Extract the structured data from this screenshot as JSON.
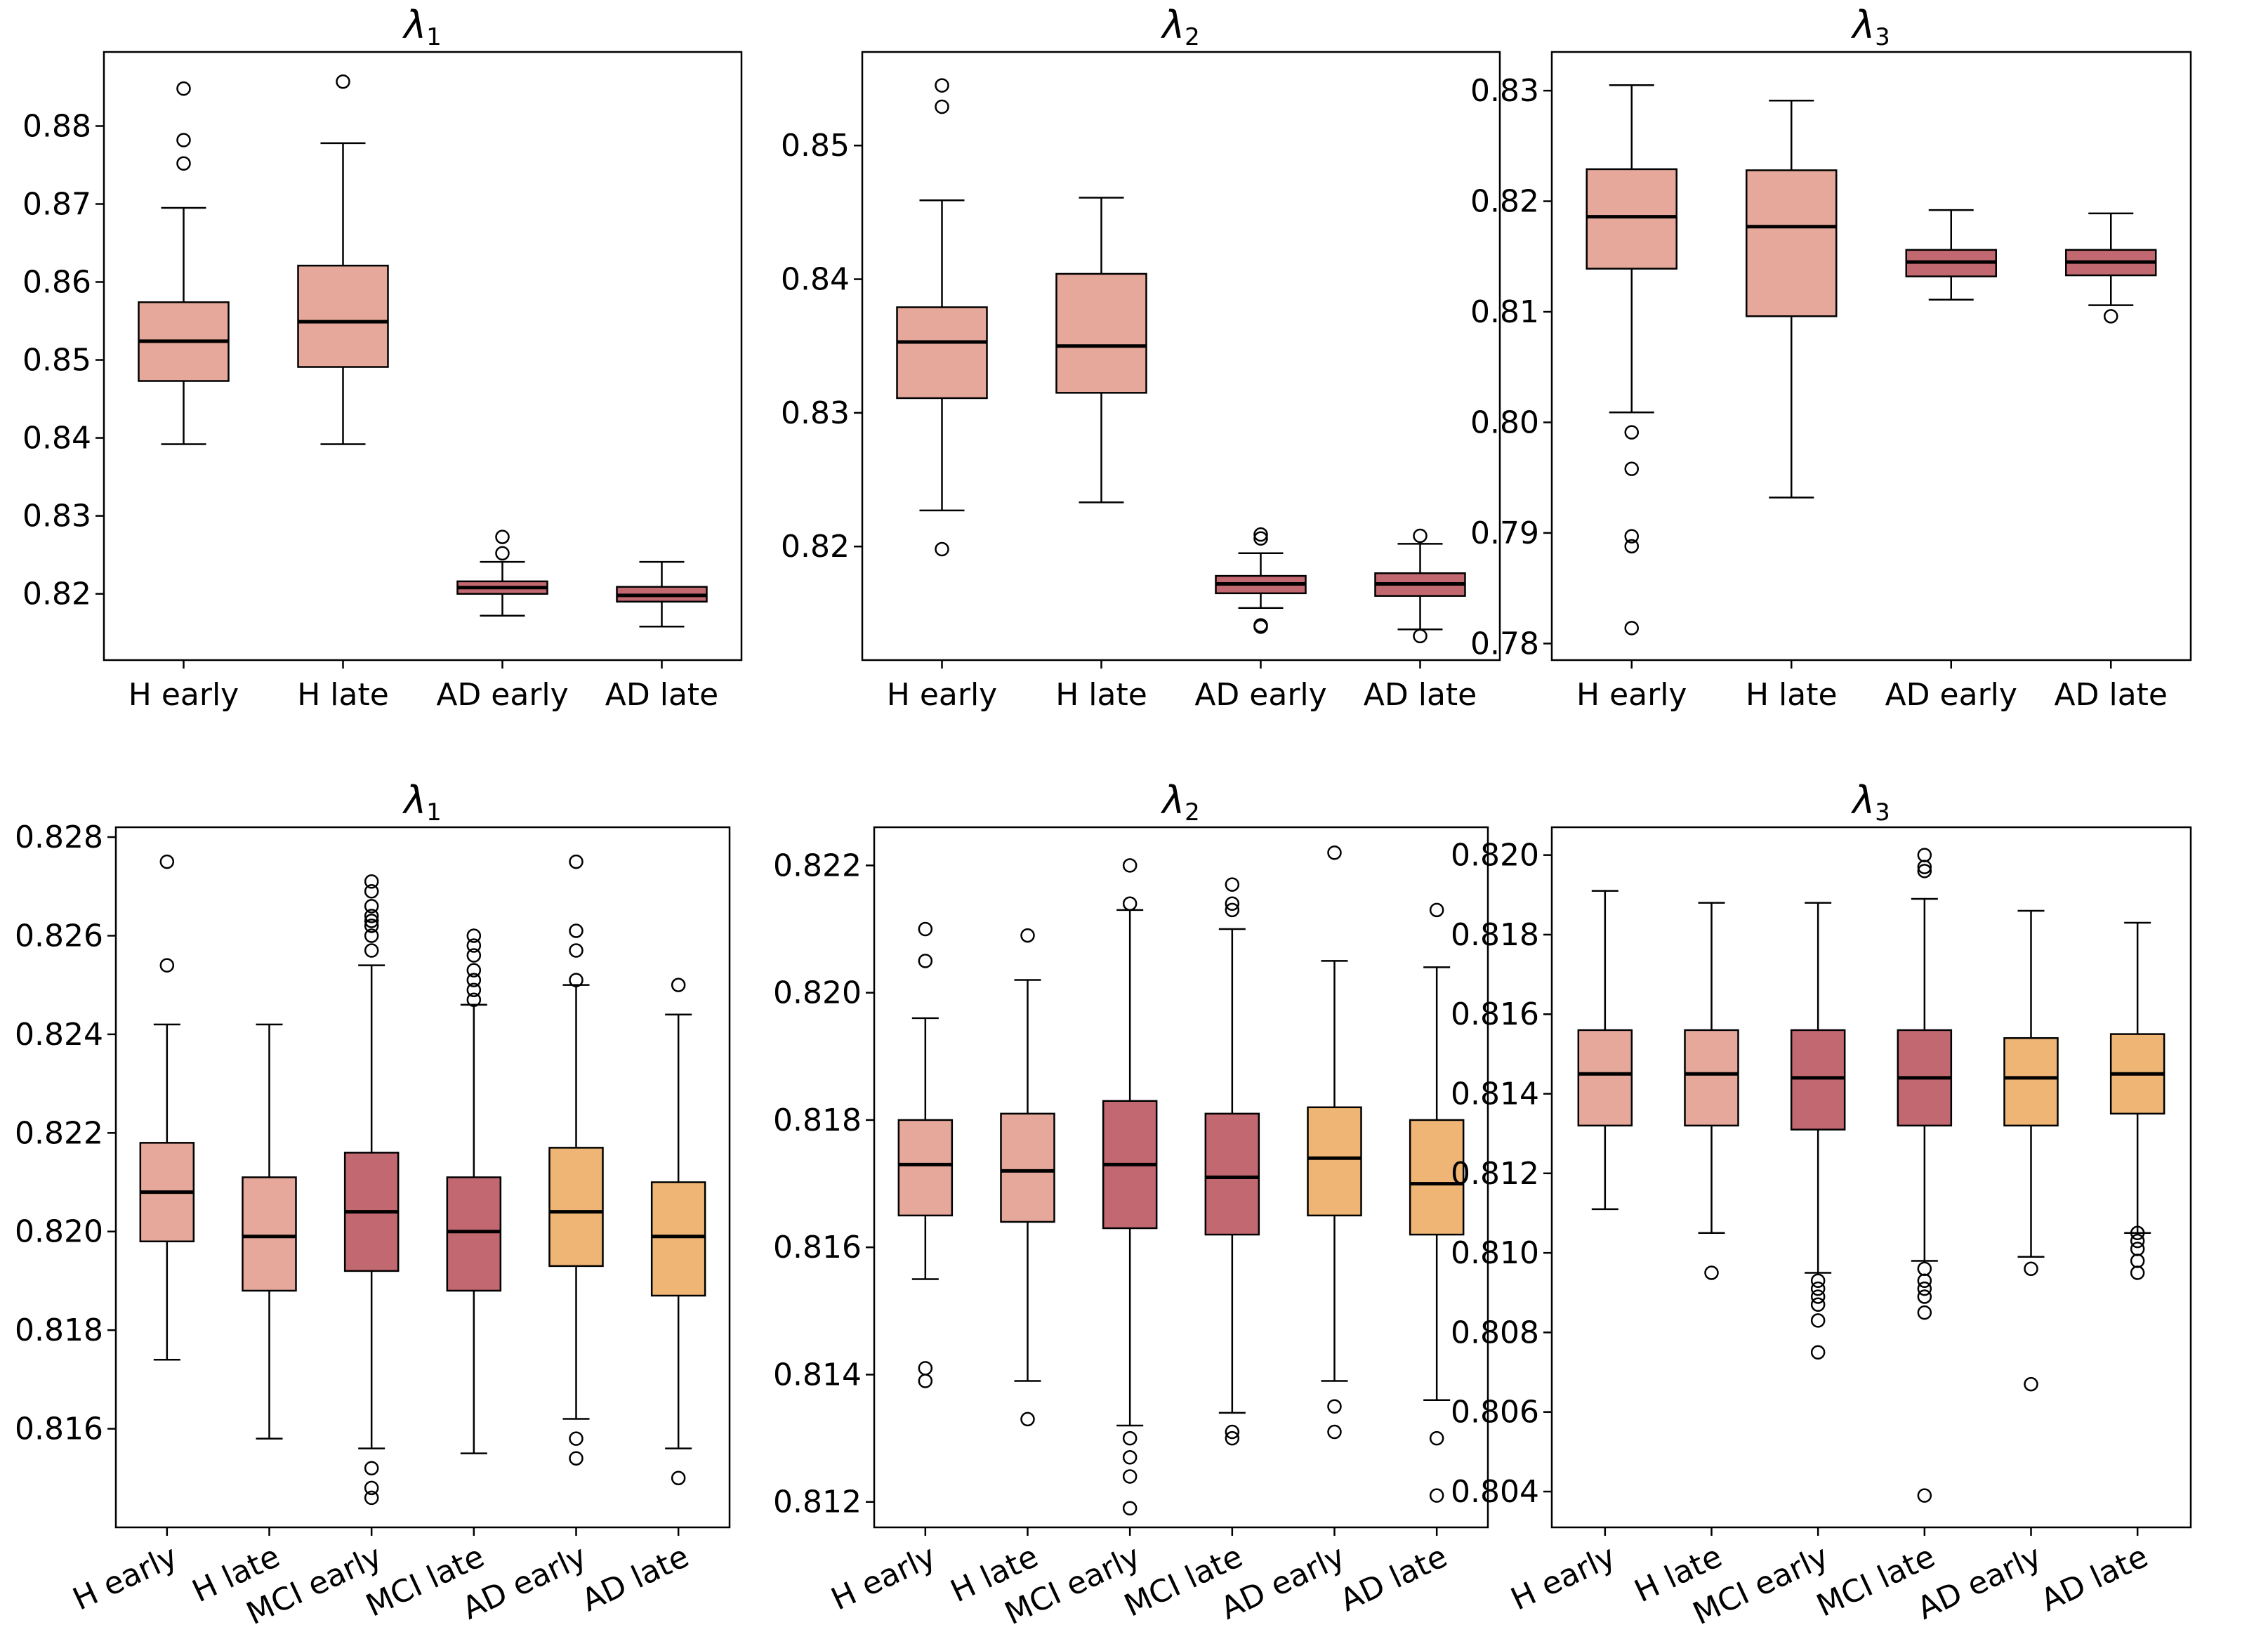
{
  "colors": {
    "H": "#E6A89A",
    "MCI": "#C26870",
    "AD_top": "#C26870",
    "AD_bottom": "#EEB574",
    "edge": "#000000"
  },
  "chart_data": [
    {
      "type": "boxplot",
      "title": "λ1",
      "title_main": "λ",
      "title_sub": "1",
      "categories": [
        "H early",
        "H late",
        "AD early",
        "AD late"
      ],
      "ylim": [
        0.8115,
        0.8895
      ],
      "yticks": [
        0.82,
        0.83,
        0.84,
        0.85,
        0.86,
        0.87,
        0.88
      ],
      "tick_labels": [
        "0.82",
        "0.83",
        "0.84",
        "0.85",
        "0.86",
        "0.87",
        "0.88"
      ],
      "groups": [
        "H",
        "H",
        "AD",
        "AD"
      ],
      "boxes": [
        {
          "whislo": 0.8392,
          "q1": 0.8473,
          "med": 0.8524,
          "q3": 0.8574,
          "whishi": 0.8695,
          "fliers": [
            0.8752,
            0.8782,
            0.8848
          ]
        },
        {
          "whislo": 0.8392,
          "q1": 0.8491,
          "med": 0.8549,
          "q3": 0.8621,
          "whishi": 0.8778,
          "fliers": [
            0.8857
          ]
        },
        {
          "whislo": 0.8172,
          "q1": 0.82,
          "med": 0.8208,
          "q3": 0.8216,
          "whishi": 0.8241,
          "fliers": [
            0.8252,
            0.8273
          ]
        },
        {
          "whislo": 0.8158,
          "q1": 0.819,
          "med": 0.8198,
          "q3": 0.8209,
          "whishi": 0.8241,
          "fliers": []
        }
      ]
    },
    {
      "type": "boxplot",
      "title": "λ2",
      "title_main": "λ",
      "title_sub": "2",
      "categories": [
        "H early",
        "H late",
        "AD early",
        "AD late"
      ],
      "ylim": [
        0.8115,
        0.857
      ],
      "yticks": [
        0.82,
        0.83,
        0.84,
        0.85
      ],
      "tick_labels": [
        "0.82",
        "0.83",
        "0.84",
        "0.85"
      ],
      "groups": [
        "H",
        "H",
        "AD",
        "AD"
      ],
      "boxes": [
        {
          "whislo": 0.8227,
          "q1": 0.8311,
          "med": 0.8353,
          "q3": 0.8379,
          "whishi": 0.8459,
          "fliers": [
            0.8198,
            0.8529,
            0.8545
          ]
        },
        {
          "whislo": 0.8233,
          "q1": 0.8315,
          "med": 0.835,
          "q3": 0.8404,
          "whishi": 0.8461,
          "fliers": []
        },
        {
          "whislo": 0.8154,
          "q1": 0.8165,
          "med": 0.8172,
          "q3": 0.8178,
          "whishi": 0.8195,
          "fliers": [
            0.814,
            0.8141,
            0.8206,
            0.8209
          ]
        },
        {
          "whislo": 0.8138,
          "q1": 0.8163,
          "med": 0.8172,
          "q3": 0.818,
          "whishi": 0.8202,
          "fliers": [
            0.8133,
            0.8208
          ]
        }
      ]
    },
    {
      "type": "boxplot",
      "title": "λ3",
      "title_main": "λ",
      "title_sub": "3",
      "categories": [
        "H early",
        "H late",
        "AD early",
        "AD late"
      ],
      "ylim": [
        0.7785,
        0.8335
      ],
      "yticks": [
        0.78,
        0.79,
        0.8,
        0.81,
        0.82,
        0.83
      ],
      "tick_labels": [
        "0.78",
        "0.79",
        "0.80",
        "0.81",
        "0.82",
        "0.83"
      ],
      "groups": [
        "H",
        "H",
        "AD",
        "AD"
      ],
      "boxes": [
        {
          "whislo": 0.8009,
          "q1": 0.8139,
          "med": 0.8186,
          "q3": 0.8229,
          "whishi": 0.8305,
          "fliers": [
            0.7991,
            0.7958,
            0.7897,
            0.7888,
            0.7814
          ]
        },
        {
          "whislo": 0.7932,
          "q1": 0.8096,
          "med": 0.8177,
          "q3": 0.8228,
          "whishi": 0.8291,
          "fliers": []
        },
        {
          "whislo": 0.8111,
          "q1": 0.8132,
          "med": 0.8145,
          "q3": 0.8156,
          "whishi": 0.8192,
          "fliers": []
        },
        {
          "whislo": 0.8106,
          "q1": 0.8133,
          "med": 0.8145,
          "q3": 0.8156,
          "whishi": 0.8189,
          "fliers": [
            0.8096
          ]
        }
      ]
    },
    {
      "type": "boxplot",
      "title": "λ1",
      "title_main": "λ",
      "title_sub": "1",
      "categories": [
        "H early",
        "H late",
        "MCI early",
        "MCI late",
        "AD early",
        "AD late"
      ],
      "ylim": [
        0.814,
        0.8282
      ],
      "yticks": [
        0.816,
        0.818,
        0.82,
        0.822,
        0.824,
        0.826,
        0.828
      ],
      "tick_labels": [
        "0.816",
        "0.818",
        "0.820",
        "0.822",
        "0.824",
        "0.826",
        "0.828"
      ],
      "groups": [
        "H",
        "H",
        "MCI",
        "MCI",
        "AD",
        "AD"
      ],
      "boxes": [
        {
          "whislo": 0.8174,
          "q1": 0.8198,
          "med": 0.8208,
          "q3": 0.8218,
          "whishi": 0.8242,
          "fliers": [
            0.8254,
            0.8275
          ]
        },
        {
          "whislo": 0.8158,
          "q1": 0.8188,
          "med": 0.8199,
          "q3": 0.8211,
          "whishi": 0.8242,
          "fliers": []
        },
        {
          "whislo": 0.8156,
          "q1": 0.8192,
          "med": 0.8204,
          "q3": 0.8216,
          "whishi": 0.8254,
          "fliers": [
            0.8152,
            0.8148,
            0.8146,
            0.8257,
            0.826,
            0.8262,
            0.8263,
            0.8264,
            0.8266,
            0.8269,
            0.8271
          ]
        },
        {
          "whislo": 0.8155,
          "q1": 0.8188,
          "med": 0.82,
          "q3": 0.8211,
          "whishi": 0.8246,
          "fliers": [
            0.8247,
            0.8249,
            0.8251,
            0.8253,
            0.8256,
            0.8258,
            0.826
          ]
        },
        {
          "whislo": 0.8162,
          "q1": 0.8193,
          "med": 0.8204,
          "q3": 0.8217,
          "whishi": 0.825,
          "fliers": [
            0.8158,
            0.8154,
            0.8251,
            0.8257,
            0.8261,
            0.8275
          ]
        },
        {
          "whislo": 0.8156,
          "q1": 0.8187,
          "med": 0.8199,
          "q3": 0.821,
          "whishi": 0.8244,
          "fliers": [
            0.815,
            0.825
          ]
        }
      ]
    },
    {
      "type": "boxplot",
      "title": "λ2",
      "title_main": "λ",
      "title_sub": "2",
      "categories": [
        "H early",
        "H late",
        "MCI early",
        "MCI late",
        "AD early",
        "AD late"
      ],
      "ylim": [
        0.8116,
        0.8226
      ],
      "yticks": [
        0.812,
        0.814,
        0.816,
        0.818,
        0.82,
        0.822
      ],
      "tick_labels": [
        "0.812",
        "0.814",
        "0.816",
        "0.818",
        "0.820",
        "0.822"
      ],
      "groups": [
        "H",
        "H",
        "MCI",
        "MCI",
        "AD",
        "AD"
      ],
      "boxes": [
        {
          "whislo": 0.8155,
          "q1": 0.8165,
          "med": 0.8173,
          "q3": 0.818,
          "whishi": 0.8196,
          "fliers": [
            0.8139,
            0.8141,
            0.8205,
            0.821
          ]
        },
        {
          "whislo": 0.8139,
          "q1": 0.8164,
          "med": 0.8172,
          "q3": 0.8181,
          "whishi": 0.8202,
          "fliers": [
            0.8133,
            0.8209
          ]
        },
        {
          "whislo": 0.8132,
          "q1": 0.8163,
          "med": 0.8173,
          "q3": 0.8183,
          "whishi": 0.8213,
          "fliers": [
            0.8119,
            0.8124,
            0.8127,
            0.813,
            0.8214,
            0.822
          ]
        },
        {
          "whislo": 0.8134,
          "q1": 0.8162,
          "med": 0.8171,
          "q3": 0.8181,
          "whishi": 0.821,
          "fliers": [
            0.813,
            0.8131,
            0.8213,
            0.8214,
            0.8217
          ]
        },
        {
          "whislo": 0.8139,
          "q1": 0.8165,
          "med": 0.8174,
          "q3": 0.8182,
          "whishi": 0.8205,
          "fliers": [
            0.8131,
            0.8135,
            0.8222
          ]
        },
        {
          "whislo": 0.8136,
          "q1": 0.8162,
          "med": 0.817,
          "q3": 0.818,
          "whishi": 0.8204,
          "fliers": [
            0.8121,
            0.813,
            0.8213
          ]
        }
      ]
    },
    {
      "type": "boxplot",
      "title": "λ3",
      "title_main": "λ",
      "title_sub": "3",
      "categories": [
        "H early",
        "H late",
        "MCI early",
        "MCI late",
        "AD early",
        "AD late"
      ],
      "ylim": [
        0.8031,
        0.8207
      ],
      "yticks": [
        0.804,
        0.806,
        0.808,
        0.81,
        0.812,
        0.814,
        0.816,
        0.818,
        0.82
      ],
      "tick_labels": [
        "0.804",
        "0.806",
        "0.808",
        "0.810",
        "0.812",
        "0.814",
        "0.816",
        "0.818",
        "0.820"
      ],
      "groups": [
        "H",
        "H",
        "MCI",
        "MCI",
        "AD",
        "AD"
      ],
      "boxes": [
        {
          "whislo": 0.8111,
          "q1": 0.8132,
          "med": 0.8145,
          "q3": 0.8156,
          "whishi": 0.8191,
          "fliers": []
        },
        {
          "whislo": 0.8105,
          "q1": 0.8132,
          "med": 0.8145,
          "q3": 0.8156,
          "whishi": 0.8188,
          "fliers": [
            0.8095
          ]
        },
        {
          "whislo": 0.8095,
          "q1": 0.8131,
          "med": 0.8144,
          "q3": 0.8156,
          "whishi": 0.8188,
          "fliers": [
            0.8075,
            0.8083,
            0.8087,
            0.8089,
            0.8091,
            0.8093
          ]
        },
        {
          "whislo": 0.8098,
          "q1": 0.8132,
          "med": 0.8144,
          "q3": 0.8156,
          "whishi": 0.8189,
          "fliers": [
            0.8039,
            0.8085,
            0.8089,
            0.8091,
            0.8093,
            0.8096,
            0.8196,
            0.8197,
            0.82
          ]
        },
        {
          "whislo": 0.8099,
          "q1": 0.8132,
          "med": 0.8144,
          "q3": 0.8154,
          "whishi": 0.8186,
          "fliers": [
            0.8067,
            0.8096
          ]
        },
        {
          "whislo": 0.8105,
          "q1": 0.8135,
          "med": 0.8145,
          "q3": 0.8155,
          "whishi": 0.8183,
          "fliers": [
            0.8095,
            0.8098,
            0.8101,
            0.8103,
            0.8105
          ]
        }
      ]
    }
  ]
}
